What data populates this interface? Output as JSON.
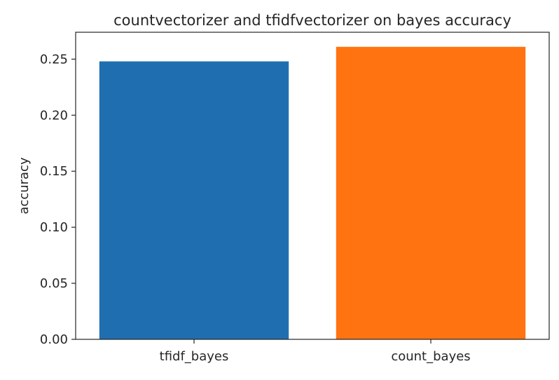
{
  "chart_data": {
    "type": "bar",
    "title": "countvectorizer and tfidfvectorizer on bayes  accuracy",
    "xlabel": "",
    "ylabel": "accuracy",
    "categories": [
      "tfidf_bayes",
      "count_bayes"
    ],
    "values": [
      0.248,
      0.261
    ],
    "ylim": [
      0,
      0.274
    ],
    "yticks": [
      "0.00",
      "0.05",
      "0.10",
      "0.15",
      "0.20",
      "0.25"
    ],
    "grid": false,
    "legend": "none",
    "colors": [
      "#1f6fb0",
      "#ff7410"
    ],
    "axis_color": "#262626"
  }
}
